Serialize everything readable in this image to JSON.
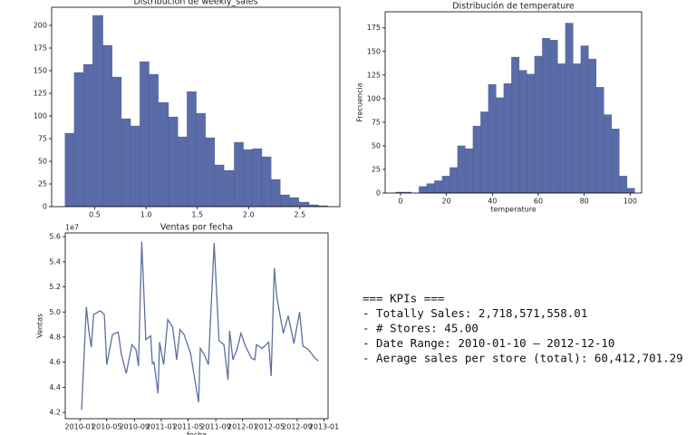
{
  "chart_data": [
    {
      "type": "histogram",
      "title": "Distribución de weekly_sales",
      "color": "#5a6ca8",
      "bins": [
        0.21,
        0.3,
        0.39,
        0.48,
        0.58,
        0.67,
        0.76,
        0.85,
        0.94,
        1.03,
        1.12,
        1.22,
        1.31,
        1.4,
        1.49,
        1.58,
        1.67,
        1.76,
        1.86,
        1.95,
        2.04,
        2.13,
        2.22,
        2.31,
        2.4,
        2.49,
        2.59,
        2.68,
        2.77
      ],
      "counts": [
        81,
        148,
        157,
        211,
        178,
        143,
        97,
        89,
        160,
        146,
        115,
        99,
        77,
        127,
        103,
        76,
        46,
        40,
        71,
        63,
        64,
        55,
        30,
        13,
        10,
        5,
        2,
        1
      ],
      "xlim": [
        0.08,
        2.89
      ],
      "xticks": [
        0.5,
        {
          "value": 1.0,
          "label": "1.0"
        },
        1.5,
        {
          "value": 2.0,
          "label": "2.0"
        },
        2.5
      ],
      "ylim": [
        0,
        220
      ],
      "yticks": [
        0,
        25,
        50,
        75,
        100,
        125,
        150,
        175,
        200
      ]
    },
    {
      "type": "histogram",
      "title": "Distribución de temperature",
      "xlabel": "temperature",
      "ylabel": "Frecuencia",
      "color": "#5a6ca8",
      "bins": [
        -2,
        1.35,
        4.71,
        8.06,
        11.42,
        14.77,
        18.13,
        21.48,
        24.84,
        28.19,
        31.55,
        34.9,
        38.26,
        41.61,
        44.97,
        48.32,
        51.68,
        55.03,
        58.39,
        61.74,
        65.1,
        68.45,
        71.81,
        75.16,
        78.52,
        81.87,
        85.23,
        88.58,
        91.94,
        95.29,
        98.65,
        102
      ],
      "counts": [
        1,
        1,
        0,
        7,
        10,
        13,
        18,
        27,
        50,
        47,
        71,
        86,
        115,
        101,
        116,
        144,
        130,
        126,
        145,
        164,
        162,
        137,
        180,
        137,
        156,
        142,
        112,
        83,
        68,
        18,
        5
      ],
      "xlim": [
        -6.7,
        105
      ],
      "xticks": [
        0,
        20,
        40,
        60,
        80,
        100
      ],
      "ylim": [
        0,
        192
      ],
      "yticks": [
        0,
        25,
        50,
        75,
        100,
        125,
        150,
        175
      ]
    },
    {
      "type": "line",
      "title": "Ventas por fecha",
      "xlabel": "fecha",
      "ylabel": "Ventas",
      "offset": "1e7",
      "color": "#5d6f9e",
      "x": [
        2010.02,
        2010.08,
        2010.11,
        2010.14,
        2010.17,
        2010.25,
        2010.3,
        2010.33,
        2010.4,
        2010.47,
        2010.51,
        2010.57,
        2010.64,
        2010.69,
        2010.72,
        2010.76,
        2010.81,
        2010.87,
        2010.89,
        2010.91,
        2010.96,
        2010.98,
        2011.03,
        2011.08,
        2011.14,
        2011.19,
        2011.23,
        2011.28,
        2011.36,
        2011.4,
        2011.46,
        2011.48,
        2011.53,
        2011.58,
        2011.65,
        2011.71,
        2011.77,
        2011.82,
        2011.84,
        2011.88,
        2011.93,
        2011.98,
        2012.04,
        2012.11,
        2012.15,
        2012.17,
        2012.24,
        2012.32,
        2012.35,
        2012.39,
        2012.42,
        2012.5,
        2012.56,
        2012.63,
        2012.7,
        2012.74,
        2012.81,
        2012.88,
        2012.93
      ],
      "values": [
        4.22,
        5.04,
        4.85,
        4.72,
        4.98,
        5.01,
        4.98,
        4.58,
        4.82,
        4.84,
        4.66,
        4.51,
        4.74,
        4.7,
        4.57,
        5.56,
        4.78,
        4.81,
        4.59,
        4.6,
        4.35,
        4.76,
        4.58,
        4.94,
        4.88,
        4.62,
        4.86,
        4.82,
        4.67,
        4.51,
        4.28,
        4.71,
        4.66,
        4.58,
        5.55,
        4.77,
        4.74,
        4.46,
        4.85,
        4.62,
        4.7,
        4.83,
        4.72,
        4.63,
        4.62,
        4.74,
        4.71,
        4.76,
        4.49,
        5.35,
        5.12,
        4.83,
        4.97,
        4.75,
        5.0,
        4.73,
        4.7,
        4.64,
        4.61
      ],
      "xlim": [
        2009.82,
        2013.05
      ],
      "xticks": [
        {
          "value": 2010.0,
          "label": "2010-01"
        },
        {
          "value": 2010.33,
          "label": "2010-05"
        },
        {
          "value": 2010.67,
          "label": "2010-09"
        },
        {
          "value": 2011.0,
          "label": "2011-01"
        },
        {
          "value": 2011.33,
          "label": "2011-05"
        },
        {
          "value": 2011.67,
          "label": "2011-09"
        },
        {
          "value": 2012.0,
          "label": "2012-01"
        },
        {
          "value": 2012.33,
          "label": "2012-05"
        },
        {
          "value": 2012.67,
          "label": "2012-09"
        },
        {
          "value": 2013.0,
          "label": "2013-01"
        }
      ],
      "ylim": [
        4.15,
        5.63
      ],
      "yticks": [
        4.2,
        4.4,
        4.6,
        4.8,
        {
          "value": 5.0,
          "label": "5.0"
        },
        5.2,
        5.4,
        5.6
      ]
    }
  ],
  "kpis": {
    "lines": [
      "=== KPIs ===",
      "- Totally Sales: 2,718,571,558.01",
      "- # Stores: 45.00",
      "- Date Range: 2010-01-10 — 2012-12-10",
      "- Aerage sales per store (total): 60,412,701.29"
    ]
  }
}
